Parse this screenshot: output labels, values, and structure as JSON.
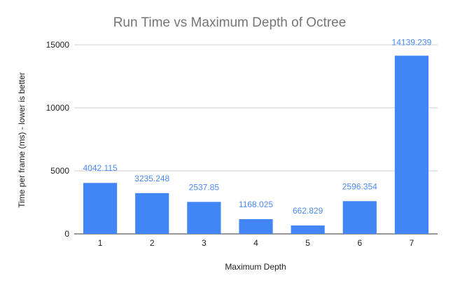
{
  "chart_data": {
    "type": "bar",
    "title": "Run Time vs Maximum Depth of Octree",
    "xlabel": "Maximum Depth",
    "ylabel": "Time per frame (ms) - lower is better",
    "categories": [
      "1",
      "2",
      "3",
      "4",
      "5",
      "6",
      "7"
    ],
    "values": [
      4042.115,
      3235.248,
      2537.85,
      1168.025,
      662.829,
      2596.354,
      14139.239
    ],
    "data_labels": [
      "4042.115",
      "3235.248",
      "2537.85",
      "1168.025",
      "662.829",
      "2596.354",
      "14139.239"
    ],
    "yticks": [
      0,
      5000,
      10000,
      15000
    ],
    "ylim": [
      0,
      15000
    ],
    "grid": true,
    "legend": "none",
    "bar_color": "#4285f4",
    "label_color_outside": "#4a8af4",
    "label_color_inside": "#ffffff"
  }
}
